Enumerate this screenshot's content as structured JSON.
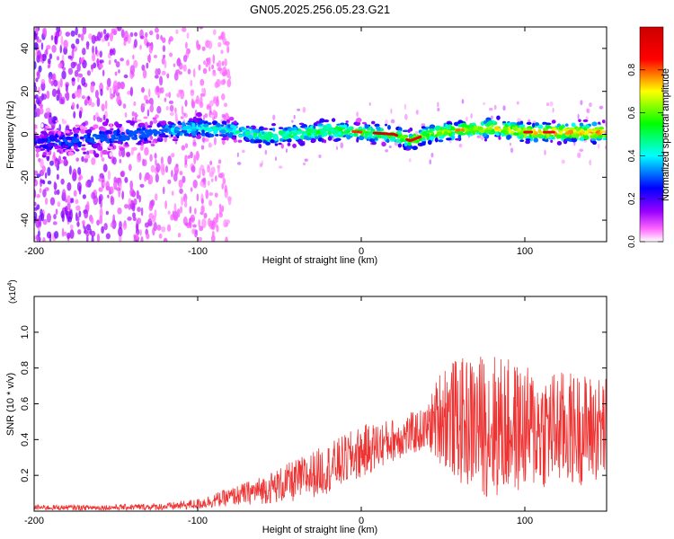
{
  "figure": {
    "title": "GN05.2025.256.05.23.G21"
  },
  "chart_data": [
    {
      "type": "heatmap",
      "name": "spectrogram",
      "xlabel": "Height of straight line (km)",
      "ylabel": "Frequency (Hz)",
      "xlim": [
        -200,
        150
      ],
      "ylim": [
        -50,
        50
      ],
      "xticks": [
        -200,
        -100,
        0,
        100
      ],
      "yticks": [
        -40,
        -20,
        0,
        20,
        40
      ],
      "colorbar": {
        "label": "Normalized spectral amplitude",
        "range": [
          0,
          1
        ],
        "ticks": [
          0.0,
          0.2,
          0.4,
          0.6,
          0.8
        ],
        "colors": [
          "#ffffff",
          "#ff55ff",
          "#8800ff",
          "#0000ff",
          "#00ffff",
          "#00ff00",
          "#ffff00",
          "#ff0000",
          "#cc0000"
        ]
      },
      "ridge": {
        "description_points_x": [
          -200,
          -180,
          -160,
          -140,
          -120,
          -100,
          -80,
          -60,
          -40,
          -20,
          0,
          20,
          30,
          40,
          60,
          80,
          100,
          120,
          150
        ],
        "description_points_y": [
          -4,
          -3,
          -2,
          0,
          2,
          3,
          2,
          -1,
          0,
          2,
          1,
          0,
          -3,
          0,
          2,
          3,
          1,
          1,
          1
        ],
        "peak_amplitude": 0.95
      },
      "colors": {
        "accent": "#ff0000"
      }
    },
    {
      "type": "line",
      "name": "snr",
      "xlabel": "Height of straight line (km)",
      "ylabel": "SNR (10 * v/v)",
      "scale_label": "(x10",
      "scale_exp": "4",
      "xlim": [
        -200,
        150
      ],
      "ylim": [
        0,
        1.2
      ],
      "xticks": [
        -200,
        -100,
        0,
        100
      ],
      "yticks": [
        0.2,
        0.4,
        0.6,
        0.8,
        1.0
      ],
      "series": [
        {
          "name": "SNR",
          "color": "#ee3333",
          "envelope_x": [
            -200,
            -160,
            -120,
            -100,
            -80,
            -60,
            -40,
            -20,
            0,
            20,
            40,
            50,
            60,
            80,
            100,
            120,
            150
          ],
          "envelope_mean": [
            0.02,
            0.02,
            0.025,
            0.04,
            0.08,
            0.12,
            0.17,
            0.24,
            0.33,
            0.4,
            0.46,
            0.55,
            0.5,
            0.48,
            0.46,
            0.46,
            0.46
          ],
          "envelope_spread": [
            0.015,
            0.015,
            0.02,
            0.03,
            0.05,
            0.08,
            0.12,
            0.14,
            0.15,
            0.12,
            0.12,
            0.3,
            0.35,
            0.42,
            0.35,
            0.33,
            0.3
          ]
        }
      ]
    }
  ]
}
